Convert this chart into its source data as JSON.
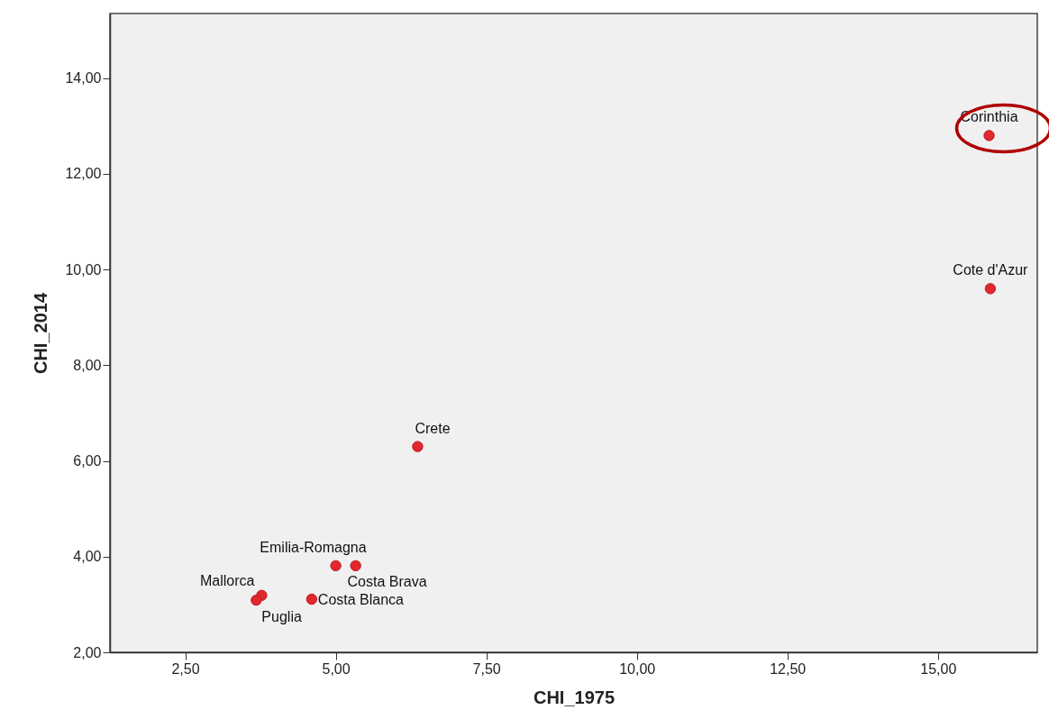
{
  "chart_data": {
    "type": "scatter",
    "xlabel": "CHI_1975",
    "ylabel": "CHI_2014",
    "x": [
      15.85,
      15.87,
      6.36,
      5.33,
      5.0,
      4.6,
      3.77,
      3.68
    ],
    "series": [
      {
        "color": "#e0282e",
        "values": [
          12.8,
          9.6,
          6.3,
          3.81,
          3.81,
          3.11,
          3.19,
          3.09
        ]
      }
    ],
    "xlim": [
      1.25,
      16.65
    ],
    "ylim": [
      2,
      15.35
    ],
    "xticks": [
      {
        "value": 2.5,
        "label": "2,50"
      },
      {
        "value": 5,
        "label": "5,00"
      },
      {
        "value": 7.5,
        "label": "7,50"
      },
      {
        "value": 10,
        "label": "10,00"
      },
      {
        "value": 12.5,
        "label": "12,50"
      },
      {
        "value": 15,
        "label": "15,00"
      }
    ],
    "yticks": [
      {
        "value": 2,
        "label": "2,00"
      },
      {
        "value": 4,
        "label": "4,00"
      },
      {
        "value": 6,
        "label": "6,00"
      },
      {
        "value": 8,
        "label": "8,00"
      },
      {
        "value": 10,
        "label": "10,00"
      },
      {
        "value": 12,
        "label": "12,00"
      },
      {
        "value": 14,
        "label": "14,00"
      }
    ],
    "annotations": [
      {
        "text": "Corinthia",
        "x": 15.85,
        "y": 12.8
      },
      {
        "text": "Cote d'Azur",
        "x": 15.87,
        "y": 9.6
      },
      {
        "text": "Crete",
        "x": 6.36,
        "y": 6.3
      },
      {
        "text": "Emilia-Romagna",
        "x": 5.33,
        "y": 3.81
      },
      {
        "text": "Costa Brava",
        "x": 5.0,
        "y": 3.81
      },
      {
        "text": "Costa Blanca",
        "x": 4.6,
        "y": 3.11
      },
      {
        "text": "Mallorca",
        "x": 3.77,
        "y": 3.19
      },
      {
        "text": "Puglia",
        "x": 3.68,
        "y": 3.09
      }
    ],
    "grid": false,
    "marker": "circle"
  }
}
